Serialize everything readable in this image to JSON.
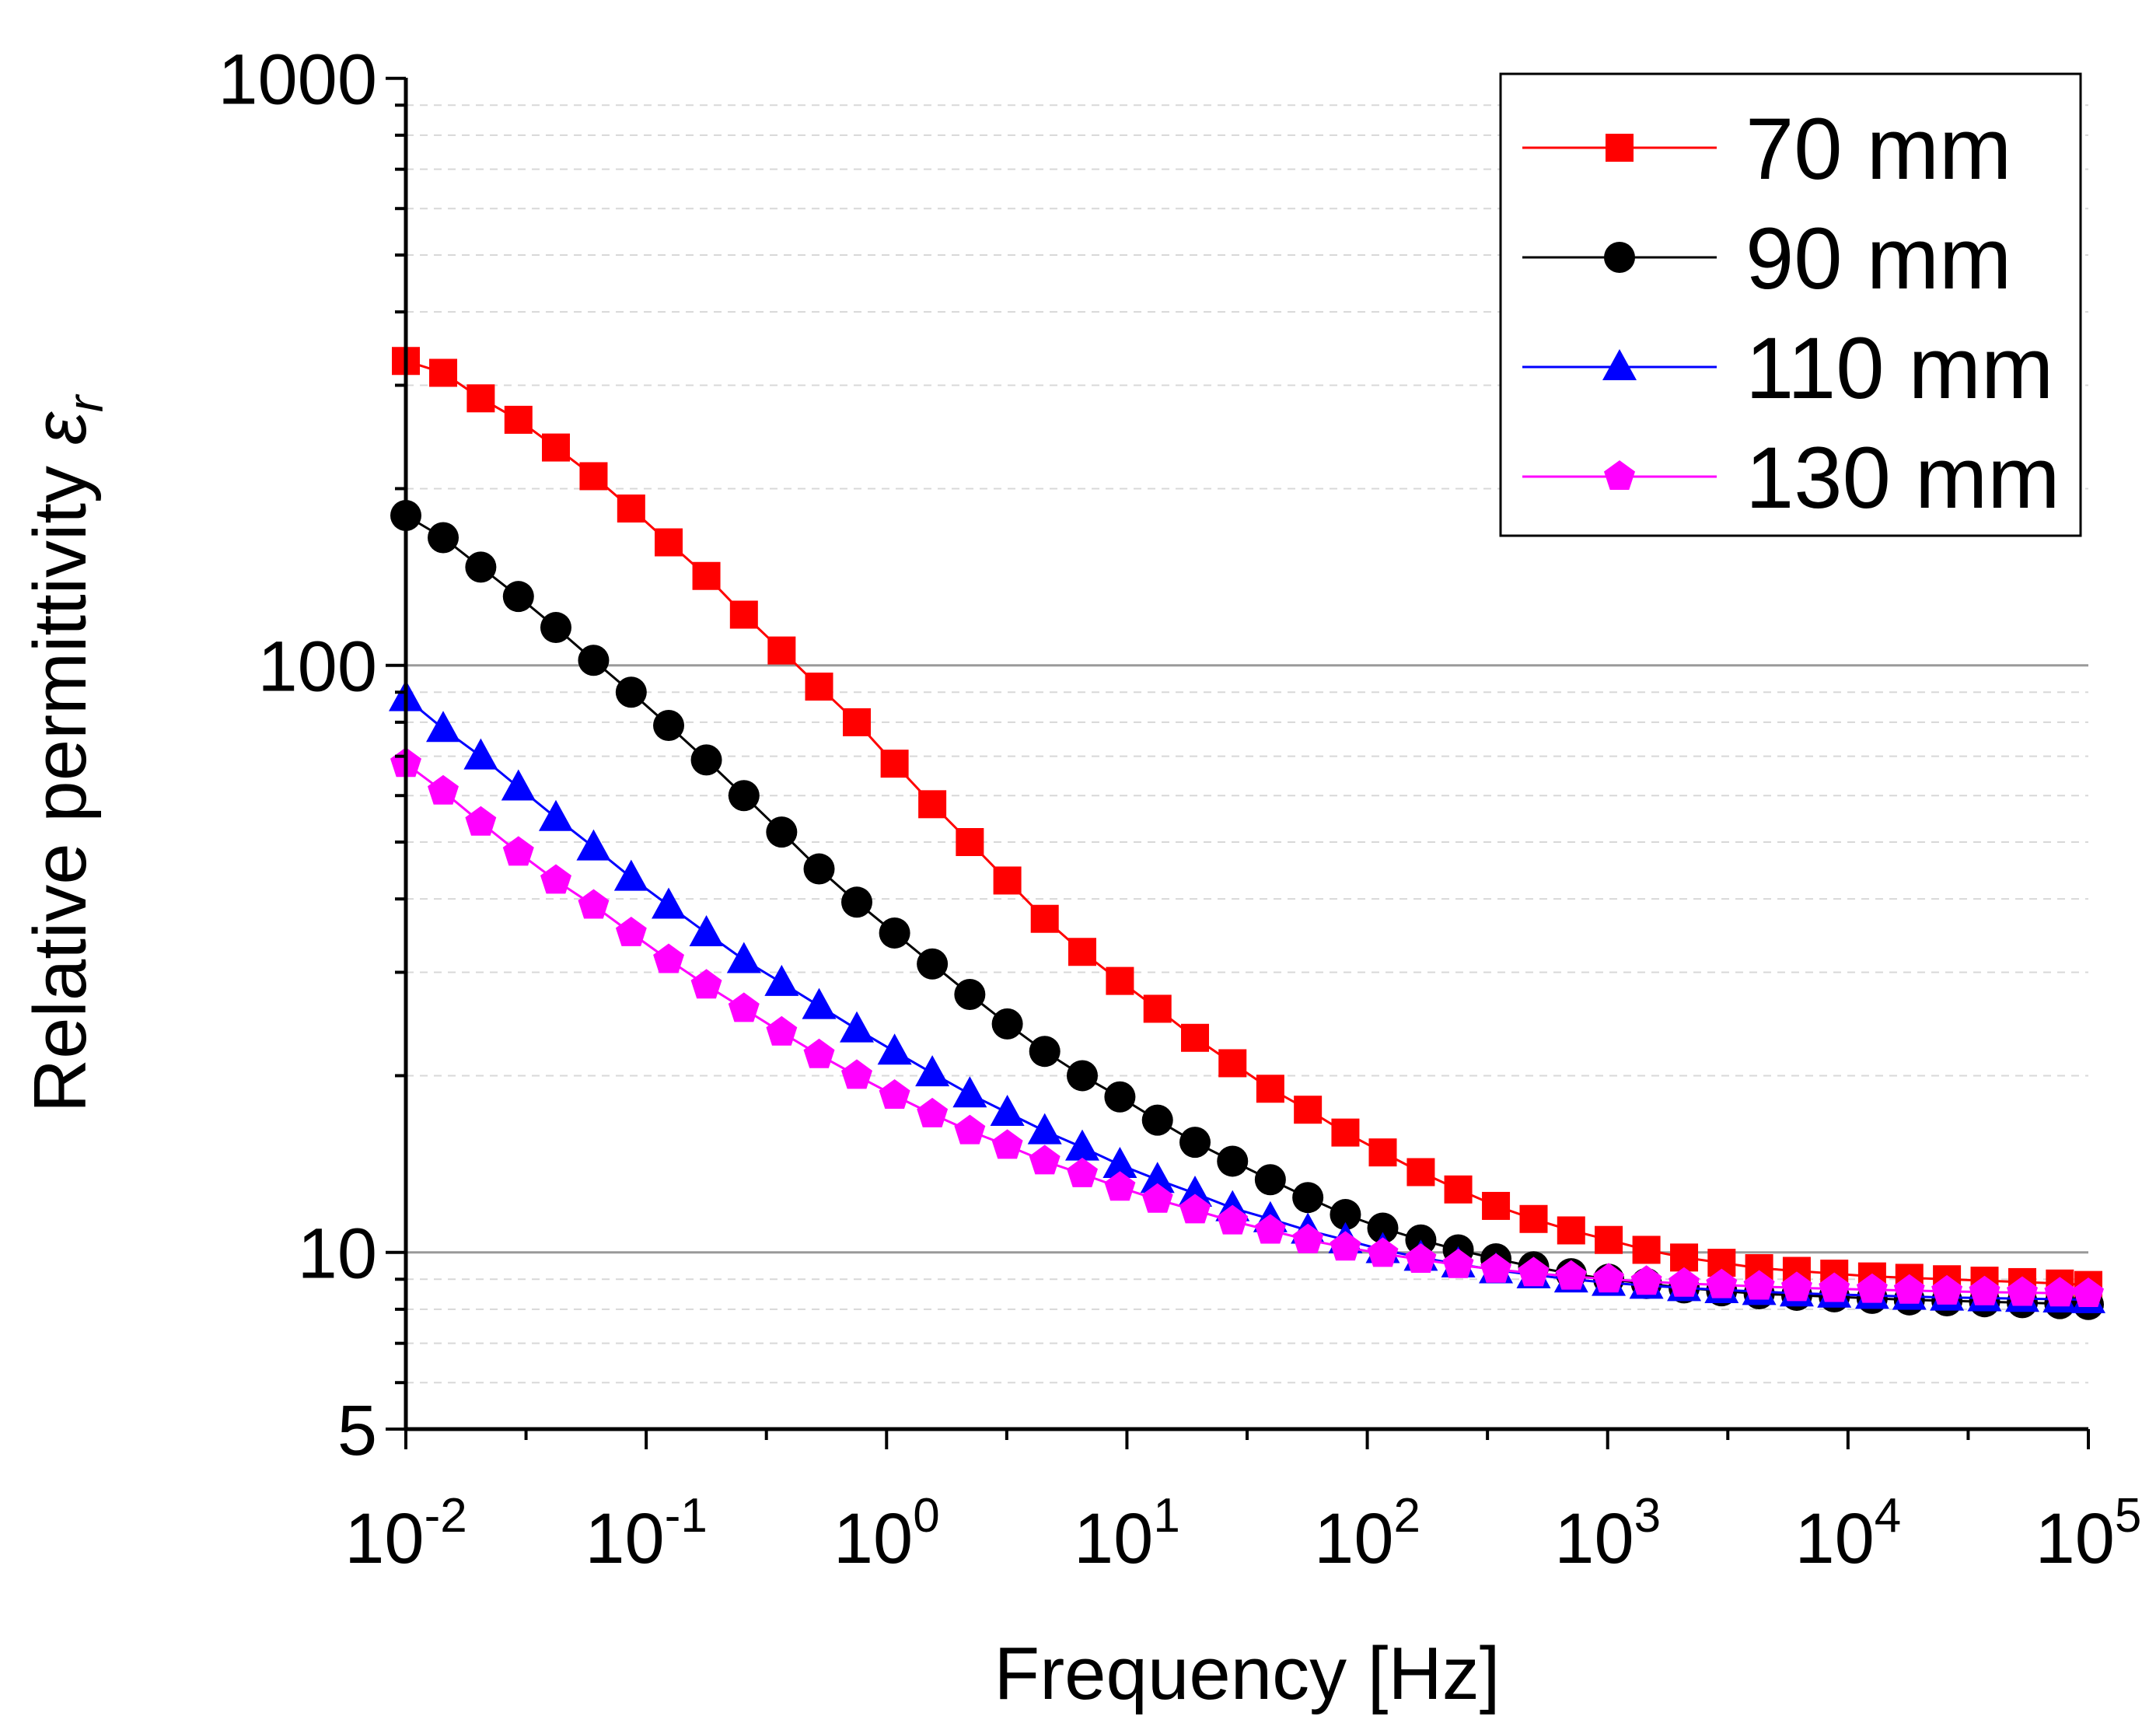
{
  "chart_data": {
    "type": "line",
    "title": "",
    "xlabel": "Frequency [Hz]",
    "ylabel": {
      "main": "Relative permittivity ",
      "symbol": "ε",
      "subscript": "r"
    },
    "xscale": "log",
    "yscale": "log",
    "xlim": [
      0.01,
      100000
    ],
    "ylim": [
      5,
      1000
    ],
    "x_tick_labels": [
      {
        "value": 0.01,
        "base": "10",
        "exp": "-2"
      },
      {
        "value": 0.1,
        "base": "10",
        "exp": "-1"
      },
      {
        "value": 1,
        "base": "10",
        "exp": "0"
      },
      {
        "value": 10,
        "base": "10",
        "exp": "1"
      },
      {
        "value": 100,
        "base": "10",
        "exp": "2"
      },
      {
        "value": 1000,
        "base": "10",
        "exp": "3"
      },
      {
        "value": 10000,
        "base": "10",
        "exp": "4"
      },
      {
        "value": 100000,
        "base": "10",
        "exp": "5"
      }
    ],
    "y_tick_labels": [
      {
        "value": 1000,
        "label": "1000"
      },
      {
        "value": 100,
        "label": "100"
      },
      {
        "value": 10,
        "label": "10"
      },
      {
        "value": 5,
        "label": "5"
      }
    ],
    "grid": true,
    "legend_position": "top-right",
    "x": [
      0.01,
      0.0143,
      0.0205,
      0.0294,
      0.0421,
      0.0604,
      0.0866,
      0.124,
      0.178,
      0.255,
      0.366,
      0.524,
      0.752,
      1.08,
      1.55,
      2.22,
      3.18,
      4.55,
      6.52,
      9.35,
      13.4,
      19.2,
      27.5,
      39.5,
      56.6,
      81.1,
      116,
      167,
      239,
      343,
      492,
      705,
      1010,
      1450,
      2080,
      2980,
      4270,
      6120,
      8770,
      12600,
      18000,
      25800,
      37000,
      53100,
      76100,
      100000
    ],
    "series": [
      {
        "name": "70 mm",
        "color": "#ff0000",
        "marker": "square",
        "values": [
          330,
          315,
          285,
          262,
          235,
          210,
          185,
          162,
          142,
          122,
          106,
          92,
          80,
          68,
          58,
          50,
          43,
          37,
          32.5,
          29,
          26,
          23.2,
          21,
          19,
          17.5,
          16,
          14.8,
          13.7,
          12.8,
          12,
          11.4,
          10.9,
          10.5,
          10.1,
          9.8,
          9.6,
          9.4,
          9.3,
          9.2,
          9.1,
          9.05,
          9.0,
          8.95,
          8.9,
          8.85,
          8.8
        ]
      },
      {
        "name": "90 mm",
        "color": "#000000",
        "marker": "circle",
        "values": [
          180,
          165,
          147,
          131,
          116,
          102,
          90,
          79,
          69,
          60,
          52,
          45,
          39.5,
          35,
          31,
          27.5,
          24.5,
          22,
          20,
          18.4,
          16.8,
          15.4,
          14.3,
          13.3,
          12.4,
          11.6,
          11,
          10.5,
          10.1,
          9.75,
          9.45,
          9.2,
          9.0,
          8.85,
          8.7,
          8.6,
          8.5,
          8.45,
          8.4,
          8.35,
          8.3,
          8.27,
          8.24,
          8.21,
          8.18,
          8.15
        ]
      },
      {
        "name": "110 mm",
        "color": "#0000ff",
        "marker": "triangle",
        "values": [
          88,
          78,
          70,
          62,
          55,
          49,
          43.5,
          39,
          35,
          31.5,
          28.8,
          26.3,
          24,
          22,
          20.2,
          18.6,
          17.3,
          16.1,
          15.1,
          14.1,
          13.3,
          12.6,
          11.9,
          11.4,
          10.9,
          10.5,
          10.1,
          9.8,
          9.55,
          9.33,
          9.15,
          9.0,
          8.88,
          8.78,
          8.7,
          8.63,
          8.57,
          8.52,
          8.48,
          8.44,
          8.41,
          8.38,
          8.36,
          8.34,
          8.32,
          8.3
        ]
      },
      {
        "name": "130 mm",
        "color": "#ff00ff",
        "marker": "pentagon",
        "values": [
          68,
          61,
          54,
          48,
          43,
          39,
          35,
          31.5,
          28.5,
          26,
          23.7,
          21.7,
          20,
          18.5,
          17.2,
          16.1,
          15.2,
          14.3,
          13.6,
          12.9,
          12.3,
          11.8,
          11.3,
          10.9,
          10.5,
          10.2,
          9.95,
          9.72,
          9.52,
          9.35,
          9.22,
          9.1,
          9.0,
          8.92,
          8.85,
          8.8,
          8.75,
          8.7,
          8.67,
          8.64,
          8.61,
          8.58,
          8.56,
          8.54,
          8.52,
          8.5
        ]
      }
    ]
  }
}
